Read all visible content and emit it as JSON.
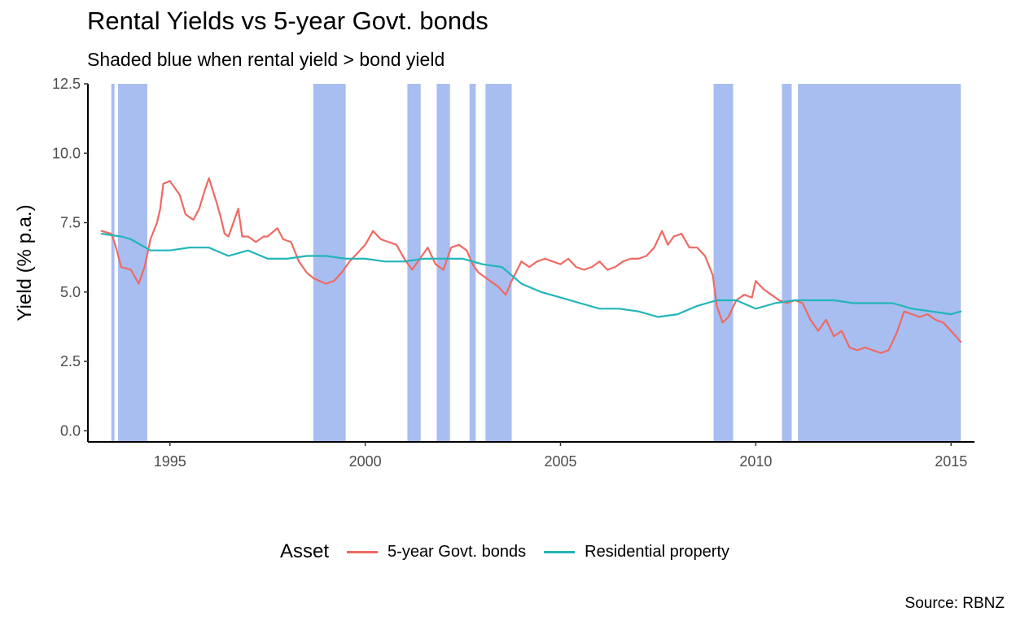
{
  "chart_data": {
    "type": "line",
    "title": "Rental Yields vs 5-year Govt. bonds",
    "subtitle": "Shaded blue when rental yield > bond yield",
    "xlabel": "",
    "ylabel": "Yield (% p.a.)",
    "caption": "Source: RBNZ",
    "xlim": [
      1992.9,
      2015.6
    ],
    "ylim": [
      -0.4,
      12.5
    ],
    "x_ticks": [
      1995,
      2000,
      2005,
      2010,
      2015
    ],
    "x_tick_labels": [
      "1995",
      "2000",
      "2005",
      "2010",
      "2015"
    ],
    "y_ticks": [
      0,
      2.5,
      5,
      7.5,
      10,
      12.5
    ],
    "y_tick_labels": [
      "0.0",
      "2.5",
      "5.0",
      "7.5",
      "10.0",
      "12.5"
    ],
    "grid": false,
    "legend": {
      "title": "Asset",
      "position": "bottom"
    },
    "shade_color": "#a8bdf0",
    "shaded_periods": [
      [
        1993.5,
        1993.58
      ],
      [
        1993.67,
        1994.42
      ],
      [
        1998.67,
        1999.5
      ],
      [
        2001.08,
        2001.42
      ],
      [
        2001.83,
        2002.17
      ],
      [
        2002.67,
        2002.83
      ],
      [
        2003.08,
        2003.75
      ],
      [
        2008.92,
        2009.42
      ],
      [
        2010.67,
        2010.92
      ],
      [
        2011.08,
        2015.25
      ]
    ],
    "series": [
      {
        "name": "5-year Govt. bonds",
        "color": "#ee6a63",
        "x": [
          1993.25,
          1993.5,
          1993.6,
          1993.75,
          1994.0,
          1994.2,
          1994.35,
          1994.5,
          1994.67,
          1994.75,
          1994.83,
          1995.0,
          1995.1,
          1995.25,
          1995.4,
          1995.6,
          1995.75,
          1995.9,
          1996.0,
          1996.2,
          1996.3,
          1996.4,
          1996.5,
          1996.75,
          1996.85,
          1997.0,
          1997.2,
          1997.4,
          1997.5,
          1997.75,
          1997.9,
          1998.1,
          1998.3,
          1998.5,
          1998.67,
          1998.83,
          1999.0,
          1999.2,
          1999.4,
          1999.6,
          1999.8,
          2000.0,
          2000.2,
          2000.4,
          2000.6,
          2000.8,
          2001.0,
          2001.2,
          2001.4,
          2001.6,
          2001.8,
          2002.0,
          2002.2,
          2002.4,
          2002.6,
          2002.75,
          2002.9,
          2003.2,
          2003.4,
          2003.6,
          2003.75,
          2004.0,
          2004.2,
          2004.4,
          2004.6,
          2004.8,
          2005.0,
          2005.2,
          2005.4,
          2005.6,
          2005.8,
          2006.0,
          2006.2,
          2006.4,
          2006.6,
          2006.8,
          2007.0,
          2007.2,
          2007.4,
          2007.6,
          2007.75,
          2007.9,
          2008.1,
          2008.3,
          2008.5,
          2008.7,
          2008.9,
          2009.0,
          2009.15,
          2009.3,
          2009.5,
          2009.7,
          2009.9,
          2010.0,
          2010.2,
          2010.4,
          2010.6,
          2010.8,
          2011.0,
          2011.2,
          2011.4,
          2011.6,
          2011.8,
          2012.0,
          2012.2,
          2012.4,
          2012.6,
          2012.8,
          2013.0,
          2013.2,
          2013.4,
          2013.6,
          2013.8,
          2014.0,
          2014.2,
          2014.4,
          2014.6,
          2014.8,
          2015.0,
          2015.25
        ],
        "y": [
          7.2,
          7.1,
          6.7,
          5.9,
          5.8,
          5.3,
          5.9,
          6.9,
          7.5,
          8.0,
          8.9,
          9.0,
          8.8,
          8.5,
          7.8,
          7.6,
          8.0,
          8.7,
          9.1,
          8.2,
          7.7,
          7.1,
          7.0,
          8.0,
          7.0,
          7.0,
          6.8,
          7.0,
          7.0,
          7.3,
          6.9,
          6.8,
          6.1,
          5.7,
          5.5,
          5.4,
          5.3,
          5.4,
          5.7,
          6.1,
          6.4,
          6.7,
          7.2,
          6.9,
          6.8,
          6.7,
          6.2,
          5.8,
          6.2,
          6.6,
          6.0,
          5.8,
          6.6,
          6.7,
          6.5,
          6.0,
          5.7,
          5.4,
          5.2,
          4.9,
          5.4,
          6.1,
          5.9,
          6.1,
          6.2,
          6.1,
          6.0,
          6.2,
          5.9,
          5.8,
          5.9,
          6.1,
          5.8,
          5.9,
          6.1,
          6.2,
          6.2,
          6.3,
          6.6,
          7.2,
          6.7,
          7.0,
          7.1,
          6.6,
          6.6,
          6.3,
          5.6,
          4.5,
          3.9,
          4.1,
          4.7,
          4.9,
          4.8,
          5.4,
          5.1,
          4.9,
          4.7,
          4.6,
          4.7,
          4.6,
          4.0,
          3.6,
          4.0,
          3.4,
          3.6,
          3.0,
          2.9,
          3.0,
          2.9,
          2.8,
          2.9,
          3.5,
          4.3,
          4.2,
          4.1,
          4.2,
          4.0,
          3.9,
          3.6,
          3.2
        ],
        "x_label_ref": "date (years)"
      },
      {
        "name": "Residential property",
        "color": "#22b5b8",
        "x": [
          1993.25,
          1993.75,
          1994.0,
          1994.5,
          1995.0,
          1995.5,
          1996.0,
          1996.5,
          1997.0,
          1997.5,
          1998.0,
          1998.5,
          1999.0,
          1999.5,
          2000.0,
          2000.5,
          2001.0,
          2001.5,
          2002.0,
          2002.5,
          2003.0,
          2003.5,
          2004.0,
          2004.5,
          2005.0,
          2005.5,
          2006.0,
          2006.5,
          2007.0,
          2007.5,
          2008.0,
          2008.5,
          2009.0,
          2009.5,
          2010.0,
          2010.5,
          2011.0,
          2011.5,
          2012.0,
          2012.5,
          2013.0,
          2013.5,
          2014.0,
          2014.5,
          2015.0,
          2015.25
        ],
        "y": [
          7.1,
          7.0,
          6.9,
          6.5,
          6.5,
          6.6,
          6.6,
          6.3,
          6.5,
          6.2,
          6.2,
          6.3,
          6.3,
          6.2,
          6.2,
          6.1,
          6.1,
          6.2,
          6.2,
          6.2,
          6.0,
          5.9,
          5.3,
          5.0,
          4.8,
          4.6,
          4.4,
          4.4,
          4.3,
          4.1,
          4.2,
          4.5,
          4.7,
          4.7,
          4.4,
          4.6,
          4.7,
          4.7,
          4.7,
          4.6,
          4.6,
          4.6,
          4.4,
          4.3,
          4.2,
          4.3
        ]
      }
    ]
  }
}
